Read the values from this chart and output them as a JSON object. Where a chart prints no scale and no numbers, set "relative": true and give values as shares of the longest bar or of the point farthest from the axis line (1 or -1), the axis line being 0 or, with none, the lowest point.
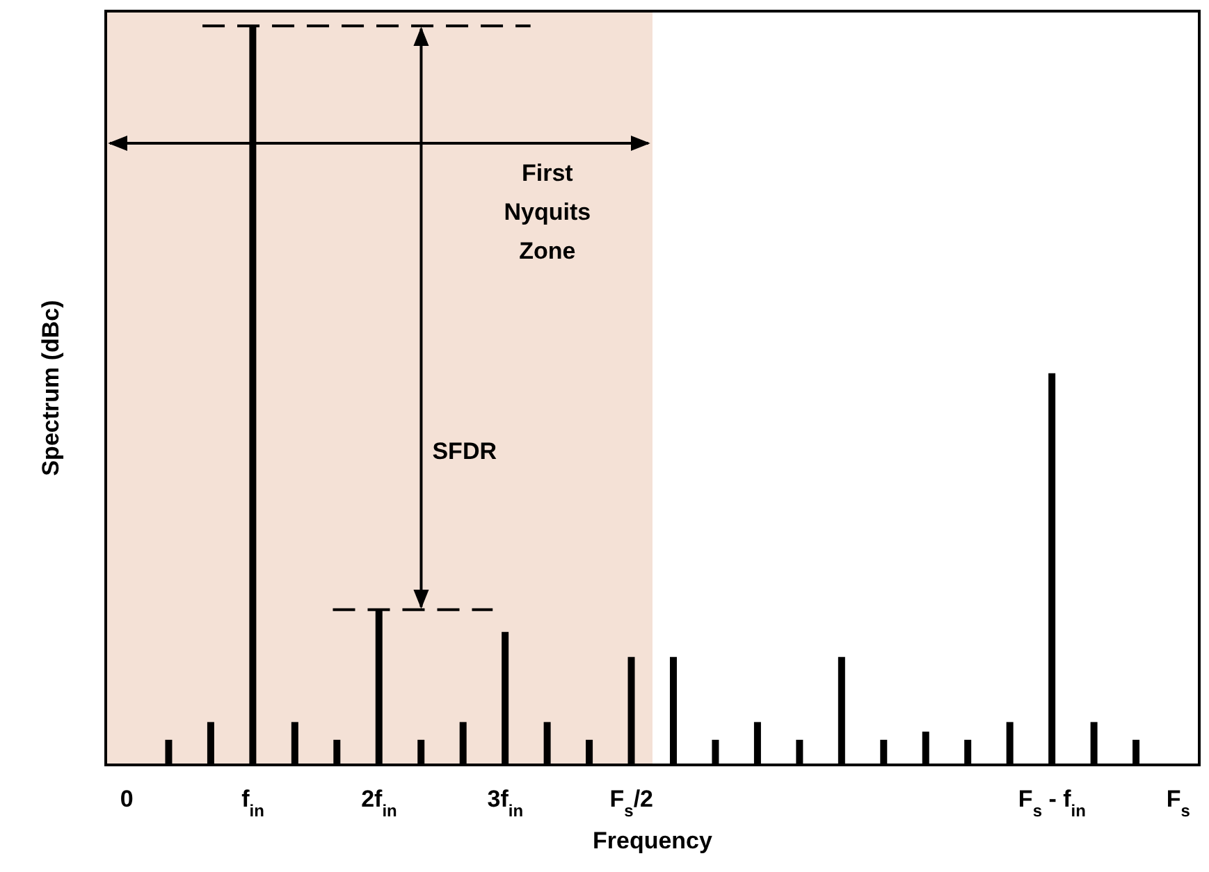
{
  "chart_data": {
    "type": "bar",
    "relative": true,
    "xlabel": "Frequency",
    "ylabel": "Spectrum (dBc)",
    "categories": [
      "0",
      null,
      null,
      "f$_{in}$",
      null,
      null,
      "2f$_{in}$",
      null,
      null,
      "3f$_{in}$",
      null,
      null,
      "F$_{s}$/2",
      null,
      null,
      null,
      null,
      null,
      null,
      null,
      null,
      null,
      "F$_{s}$ - f$_{in}$",
      null,
      null,
      "F$_{s}$"
    ],
    "values": [
      null,
      0.034,
      0.058,
      1,
      0.058,
      0.034,
      0.21,
      0.034,
      0.058,
      0.18,
      0.058,
      0.034,
      0.146,
      0.146,
      0.034,
      0.058,
      0.034,
      0.146,
      0.034,
      0.045,
      0.034,
      0.058,
      0.53,
      0.058,
      0.034,
      null
    ],
    "color": "#000000",
    "bands": [
      {
        "axis": "x",
        "from": "0",
        "to": "F$_{s}$/2",
        "color": "#f4e1d6"
      }
    ],
    "annotations": [
      "First\nNyquits\nZone",
      "SFDR"
    ]
  }
}
